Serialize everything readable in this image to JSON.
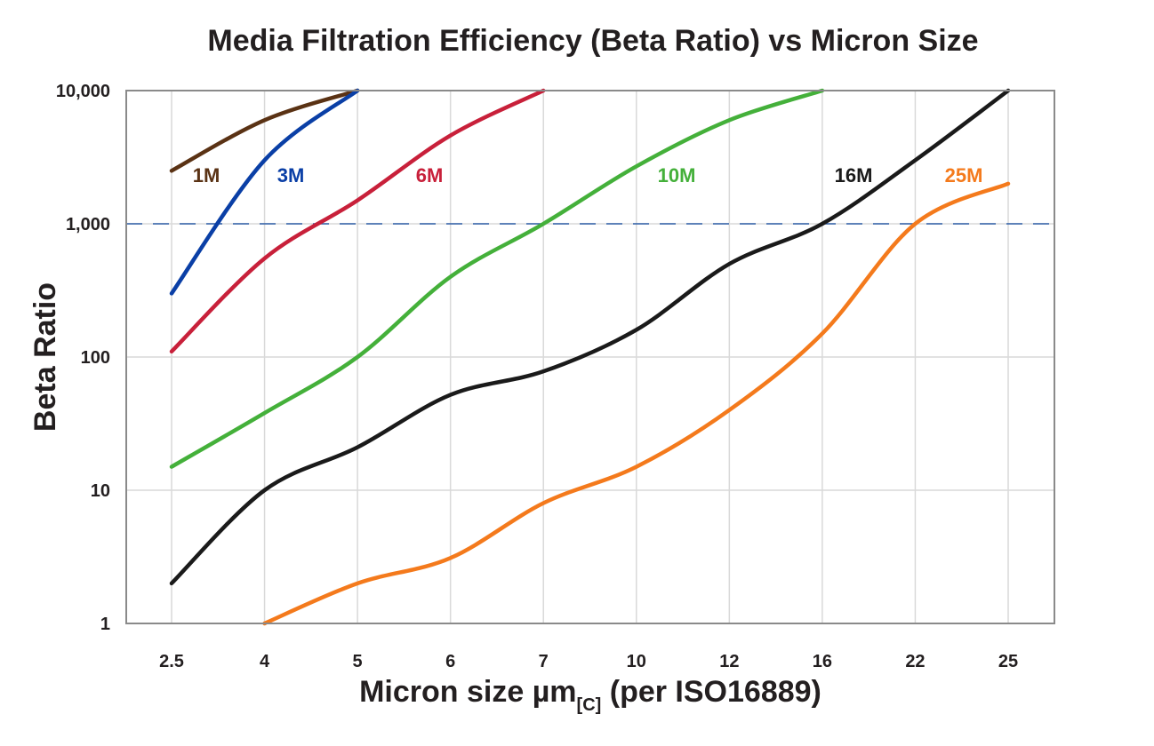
{
  "chart_data": {
    "type": "line",
    "title": "Media Filtration Efficiency (Beta Ratio) vs Micron Size",
    "xlabel_main": "Micron size µm",
    "xlabel_sub": "[C]",
    "xlabel_tail": " (per ISO16889)",
    "ylabel": "Beta Ratio",
    "x_scale": "categorical",
    "y_scale": "log",
    "ylim": [
      1,
      10000
    ],
    "categories": [
      "2.5",
      "4",
      "5",
      "6",
      "7",
      "10",
      "12",
      "16",
      "22",
      "25"
    ],
    "y_ticks": [
      1,
      10,
      100,
      1000,
      10000
    ],
    "y_tick_labels": [
      "1",
      "10",
      "100",
      "1,000",
      "10,000"
    ],
    "grid": true,
    "reference_line": {
      "value": 1000,
      "style": "dashed",
      "color": "#2f5ea8"
    },
    "series": [
      {
        "name": "1M",
        "color": "#5a3214",
        "values": [
          2500,
          6000,
          10000,
          null,
          null,
          null,
          null,
          null,
          null,
          null
        ]
      },
      {
        "name": "3M",
        "color": "#0a3fa6",
        "values": [
          300,
          3000,
          10000,
          null,
          null,
          null,
          null,
          null,
          null,
          null
        ]
      },
      {
        "name": "6M",
        "color": "#c8203a",
        "values": [
          110,
          550,
          1500,
          4600,
          10000,
          null,
          null,
          null,
          null,
          null
        ]
      },
      {
        "name": "10M",
        "color": "#44b03a",
        "values": [
          15,
          38,
          100,
          400,
          1000,
          2700,
          6000,
          10000,
          null,
          null
        ]
      },
      {
        "name": "16M",
        "color": "#1a1a1a",
        "values": [
          2,
          10,
          21,
          52,
          78,
          160,
          500,
          1000,
          3000,
          10000
        ]
      },
      {
        "name": "25M",
        "color": "#f47a1c",
        "values": [
          null,
          1,
          2,
          3.1,
          8,
          15,
          40,
          150,
          1000,
          2000
        ]
      }
    ]
  }
}
